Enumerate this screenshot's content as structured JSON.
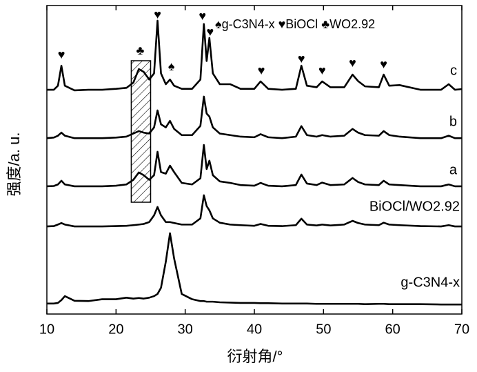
{
  "chart_data": {
    "type": "line",
    "xlabel": "衍射角/°",
    "ylabel": "强度/a. u.",
    "legend_text": "♠g-C3N4-x ♥BiOCl ♣WO2.92",
    "xlim": [
      10,
      70
    ],
    "xticks": [
      10,
      20,
      30,
      40,
      50,
      60,
      70
    ],
    "ylim": [
      0,
      100
    ],
    "color": "#000000",
    "highlight_x": [
      22.2,
      25
    ],
    "annotations": [
      {
        "text": "♥",
        "x": 12.1
      },
      {
        "text": "♣",
        "x": 23.5
      },
      {
        "text": "♥",
        "x": 26
      },
      {
        "text": "♠",
        "x": 28
      },
      {
        "text": "♥",
        "x": 32.5
      },
      {
        "text": "♥",
        "x": 33.6
      },
      {
        "text": "♥",
        "x": 41
      },
      {
        "text": "♥",
        "x": 46.8
      },
      {
        "text": "♥",
        "x": 49.8
      },
      {
        "text": "♥",
        "x": 54.2
      },
      {
        "text": "♥",
        "x": 58.7
      }
    ],
    "x": [
      10,
      11,
      11.6,
      12.1,
      12.6,
      14,
      16,
      18,
      20,
      21.5,
      22.5,
      23.3,
      24,
      24.8,
      25.5,
      26,
      26.5,
      27.2,
      27.8,
      28.4,
      29.5,
      31,
      32.2,
      32.7,
      33.1,
      33.5,
      34,
      35,
      36.5,
      38,
      40,
      40.9,
      42,
      44,
      46,
      46.8,
      47.6,
      49,
      49.8,
      51,
      53,
      54.2,
      55,
      56,
      58,
      58.7,
      59.5,
      61,
      64,
      67,
      68.1,
      69,
      70
    ],
    "series": [
      {
        "name": "c",
        "values": [
          72.7,
          72.7,
          74,
          80.5,
          74,
          72.5,
          72.7,
          72.7,
          73,
          73.3,
          75,
          79.4,
          78.5,
          76,
          78,
          95.1,
          78,
          74.5,
          76,
          74,
          73,
          73,
          76,
          94,
          82,
          89.5,
          78,
          74.5,
          74.5,
          73,
          73,
          75.4,
          73,
          72.7,
          73,
          80.5,
          74,
          73.5,
          75.4,
          73.5,
          73.5,
          77.6,
          75.5,
          73.8,
          73.5,
          77.6,
          74,
          74.2,
          72.7,
          72.7,
          74.5,
          72.7,
          72.9
        ]
      },
      {
        "name": "b",
        "values": [
          57,
          57.2,
          57.8,
          58.8,
          57.8,
          57,
          57,
          57,
          57.2,
          57.5,
          58.5,
          59.3,
          58.8,
          58.5,
          60.5,
          66,
          61.5,
          60.5,
          62.6,
          60,
          58,
          58,
          61,
          70.5,
          65,
          64,
          60.5,
          58.5,
          58,
          57.5,
          57.3,
          58.3,
          57.3,
          57,
          57.5,
          60.9,
          58,
          57.5,
          58,
          57.5,
          57.8,
          60,
          58.8,
          58,
          57.8,
          59.3,
          58,
          57.5,
          57,
          57,
          57.8,
          57,
          57
        ]
      },
      {
        "name": "a",
        "values": [
          41.4,
          41.5,
          42,
          43.2,
          42,
          41.4,
          41.4,
          41.4,
          41.6,
          42,
          43.5,
          45.9,
          45,
          43.5,
          45,
          52.6,
          46,
          45.5,
          48.1,
          46,
          42.5,
          42,
          44,
          54.8,
          47,
          49.7,
          45,
          43,
          42.5,
          41.8,
          41.6,
          42.5,
          41.6,
          41.4,
          41.8,
          45.2,
          42.3,
          41.8,
          42.6,
          41.8,
          42,
          44.1,
          42.8,
          42,
          41.8,
          43.2,
          42,
          41.8,
          41.4,
          41.4,
          42,
          41.4,
          41.4
        ]
      },
      {
        "name": "BiOCl/WO2.92",
        "values": [
          28.4,
          28.5,
          29,
          29.5,
          29,
          28.4,
          28.4,
          28.4,
          28.5,
          28.6,
          28.8,
          29,
          29.2,
          29.8,
          32,
          34.7,
          32,
          29.8,
          29.8,
          29.5,
          29,
          29,
          31,
          38.5,
          35,
          33.6,
          31,
          29.6,
          29,
          28.8,
          28.6,
          29.2,
          28.6,
          28.5,
          28.8,
          30.9,
          29,
          28.7,
          29,
          28.7,
          29,
          30.2,
          29.5,
          29,
          28.8,
          29.6,
          29,
          28.8,
          28.5,
          28.4,
          28.8,
          28.4,
          28.4
        ]
      },
      {
        "name": "g-C3N4-x",
        "values": [
          3.4,
          3.4,
          3.6,
          4.5,
          5.8,
          4.3,
          4.2,
          4.8,
          4.8,
          5.3,
          5,
          5.2,
          5,
          5.3,
          5.8,
          6.5,
          8.5,
          17,
          26.2,
          18,
          6.5,
          4.8,
          4.2,
          4.2,
          4,
          4,
          4,
          3.8,
          3.7,
          3.6,
          3.6,
          3.5,
          3.5,
          3.4,
          3.4,
          3.4,
          3.4,
          3.3,
          3.3,
          3.3,
          3.3,
          3.3,
          3.3,
          3.2,
          3.3,
          3.3,
          3.2,
          3.2,
          3.2,
          3.1,
          3.1,
          3.1,
          3.1
        ]
      }
    ]
  }
}
